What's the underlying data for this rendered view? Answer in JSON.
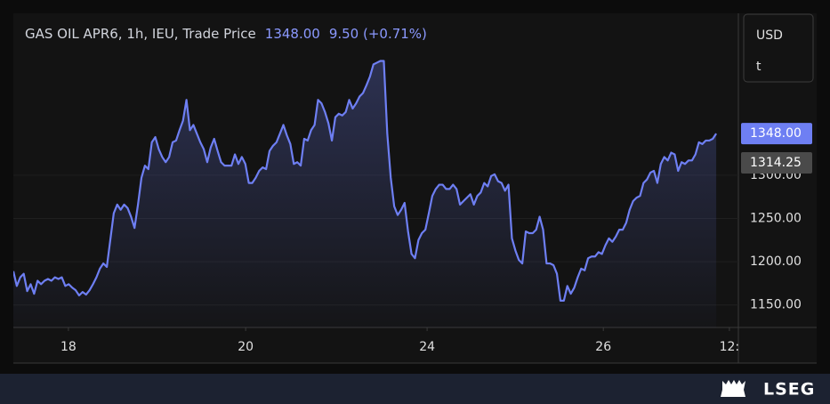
{
  "chart_data": {
    "type": "area",
    "title": "GAS OIL APR6, 1h, IEU, Trade Price",
    "header_price": "1348.00",
    "header_change": "9.50 (+0.71%)",
    "currency": "USD",
    "unit": "t",
    "brand": "LSEG",
    "x": [
      0,
      1,
      2,
      3,
      4,
      5,
      6,
      7,
      8,
      9,
      10,
      11,
      12,
      13,
      14,
      15,
      16,
      17,
      18,
      19,
      20,
      21,
      22,
      23,
      24,
      25,
      26,
      27,
      28,
      29,
      30,
      31,
      32,
      33,
      34,
      35,
      36,
      37,
      38,
      39,
      40,
      41,
      42,
      43,
      44,
      45,
      46,
      47,
      48,
      49,
      50,
      51,
      52,
      53,
      54,
      55,
      56,
      57,
      58,
      59,
      60,
      61,
      62,
      63,
      64,
      65,
      66,
      67,
      68,
      69,
      70,
      71,
      72,
      73,
      74,
      75,
      76,
      77,
      78,
      79,
      80,
      81,
      82,
      83,
      84,
      85,
      86,
      87,
      88,
      89,
      90,
      91,
      92,
      93,
      94,
      95,
      96,
      97,
      98,
      99,
      100,
      101,
      102,
      103,
      104,
      105,
      106,
      107,
      108,
      109,
      110,
      111,
      112,
      113,
      114,
      115,
      116,
      117,
      118,
      119,
      120,
      121,
      122,
      123,
      124,
      125,
      126,
      127,
      128,
      129,
      130,
      131,
      132,
      133,
      134,
      135,
      136,
      137,
      138,
      139,
      140,
      141,
      142,
      143,
      144,
      145,
      146,
      147,
      148,
      149,
      150,
      151,
      152,
      153,
      154,
      155,
      156,
      157,
      158,
      159,
      160,
      161,
      162,
      163,
      164,
      165,
      166,
      167,
      168,
      169,
      170,
      171,
      172,
      173,
      174,
      175,
      176,
      177,
      178,
      179,
      180,
      181,
      182,
      183,
      184,
      185,
      186,
      187,
      188,
      189,
      190,
      191,
      192,
      193,
      194,
      195,
      196,
      197,
      198,
      199,
      200,
      201,
      202,
      203
    ],
    "series": [
      {
        "name": "Trade Price",
        "color": "#6e7ff3",
        "values": [
          1189,
          1172,
          1182,
          1186,
          1166,
          1174,
          1163,
          1178,
          1174,
          1178,
          1180,
          1178,
          1182,
          1180,
          1182,
          1172,
          1174,
          1170,
          1167,
          1161,
          1165,
          1162,
          1167,
          1174,
          1182,
          1192,
          1198,
          1194,
          1225,
          1256,
          1266,
          1260,
          1266,
          1262,
          1252,
          1239,
          1266,
          1297,
          1311,
          1307,
          1338,
          1344,
          1330,
          1321,
          1315,
          1321,
          1338,
          1340,
          1352,
          1363,
          1387,
          1352,
          1358,
          1348,
          1338,
          1330,
          1315,
          1332,
          1342,
          1328,
          1315,
          1311,
          1311,
          1311,
          1324,
          1313,
          1321,
          1313,
          1291,
          1291,
          1297,
          1305,
          1309,
          1307,
          1328,
          1334,
          1338,
          1348,
          1358,
          1346,
          1336,
          1313,
          1315,
          1311,
          1342,
          1340,
          1352,
          1358,
          1387,
          1383,
          1373,
          1360,
          1340,
          1367,
          1371,
          1369,
          1373,
          1387,
          1377,
          1383,
          1391,
          1395,
          1404,
          1414,
          1428,
          1430,
          1432,
          1432,
          1348,
          1297,
          1264,
          1254,
          1260,
          1268,
          1235,
          1209,
          1204,
          1225,
          1233,
          1237,
          1256,
          1276,
          1284,
          1289,
          1289,
          1284,
          1284,
          1289,
          1284,
          1266,
          1270,
          1274,
          1278,
          1266,
          1276,
          1280,
          1291,
          1287,
          1299,
          1301,
          1293,
          1291,
          1282,
          1289,
          1227,
          1213,
          1202,
          1198,
          1235,
          1233,
          1233,
          1237,
          1252,
          1237,
          1198,
          1198,
          1196,
          1186,
          1155,
          1155,
          1172,
          1163,
          1170,
          1182,
          1192,
          1190,
          1204,
          1206,
          1206,
          1211,
          1209,
          1219,
          1227,
          1223,
          1229,
          1237,
          1237,
          1245,
          1260,
          1270,
          1274,
          1276,
          1291,
          1295,
          1303,
          1305,
          1291,
          1313,
          1321,
          1317,
          1326,
          1324,
          1305,
          1315,
          1313,
          1317,
          1317,
          1324,
          1338,
          1336,
          1340,
          1340,
          1342,
          1348
        ]
      }
    ],
    "xlim": [
      0,
      209.4
    ],
    "xticks": [
      {
        "value": 15.9,
        "label": "18"
      },
      {
        "value": 67.1,
        "label": "20"
      },
      {
        "value": 119.5,
        "label": "24"
      },
      {
        "value": 170.4,
        "label": "26"
      },
      {
        "value": 206.8,
        "label": "12:"
      }
    ],
    "ylim": [
      1124,
      1487
    ],
    "yticks": [
      {
        "value": 1150,
        "label": "1150.00"
      },
      {
        "value": 1200,
        "label": "1200.00"
      },
      {
        "value": 1250,
        "label": "1250.00"
      },
      {
        "value": 1300,
        "label": "1300.00"
      }
    ],
    "grid": true,
    "last_label": {
      "value": 1348,
      "label": "1348.00",
      "color": "#6e7ff3"
    },
    "reference_label": {
      "value": 1314.25,
      "label": "1314.25",
      "color": "#4a4a4a"
    }
  }
}
